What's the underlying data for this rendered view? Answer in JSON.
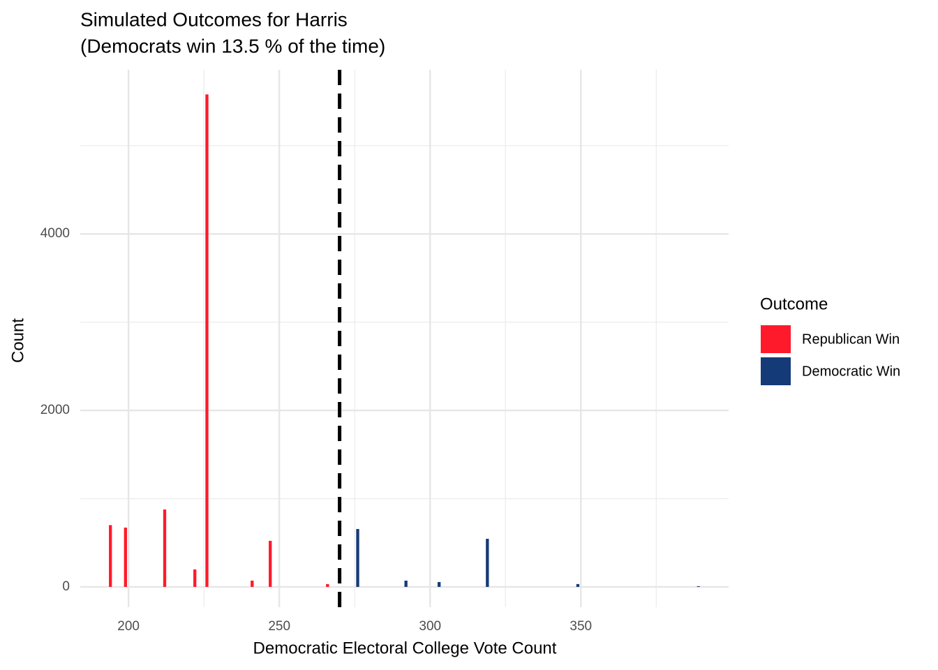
{
  "chart_data": {
    "type": "bar",
    "title": "Simulated Outcomes for Harris",
    "subtitle": "(Democrats win 13.5 % of the time)",
    "x_label": "Democratic Electoral College Vote Count",
    "y_label": "Count",
    "legend_title": "Outcome",
    "legend_position": "right",
    "series": [
      {
        "name": "Republican Win",
        "color": "#ff1a2b",
        "x": [
          194,
          199,
          212,
          222,
          226,
          241,
          247,
          266
        ],
        "values": [
          700,
          672,
          877,
          198,
          5581,
          71,
          522,
          32
        ]
      },
      {
        "name": "Democratic Win",
        "color": "#153a78",
        "x": [
          276,
          292,
          303,
          319,
          349,
          389
        ],
        "values": [
          656,
          71,
          55,
          545,
          32,
          8
        ]
      }
    ],
    "threshold": 270,
    "xlim": [
      184,
      399
    ],
    "xticks": [
      200,
      250,
      300,
      350
    ],
    "x_minor_ticks": [
      225,
      275,
      325,
      375
    ],
    "ylim": [
      -230,
      5860
    ],
    "yticks": [
      0,
      2000,
      4000
    ],
    "y_minor_ticks": [
      1000,
      3000,
      5000
    ],
    "grid": true
  }
}
